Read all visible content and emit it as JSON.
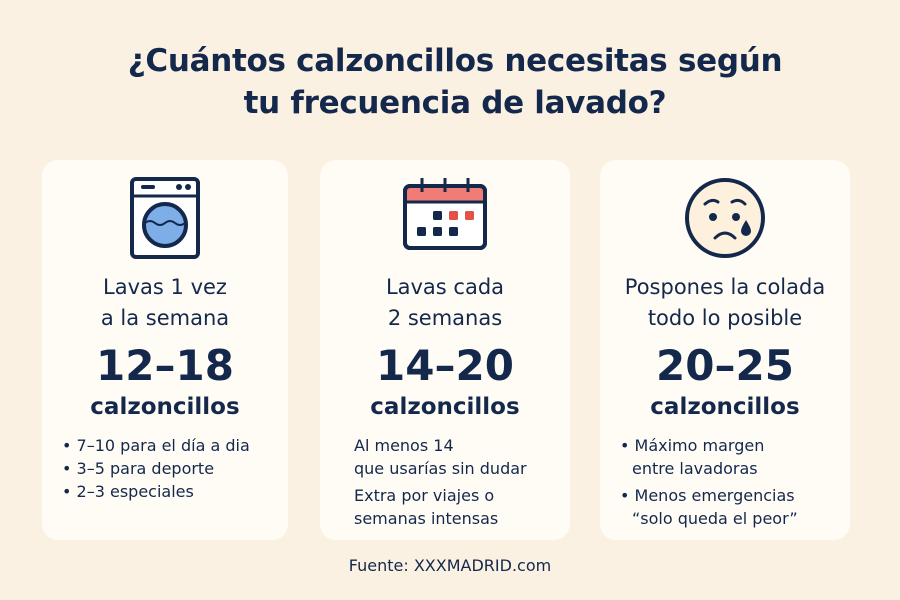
{
  "title": {
    "line1": "¿Cuántos calzoncillos necesitas según",
    "line2": "tu frecuencia de lavado?"
  },
  "colors": {
    "text": "#14284b",
    "background": "#faf1e3",
    "card": "#fffcf6",
    "accent_blue": "#7eaee8",
    "accent_red": "#e0524a",
    "calendar_header": "#f07c78"
  },
  "cards": [
    {
      "icon": "washing-machine-icon",
      "heading": [
        "Lavas 1 vez",
        "a la semana"
      ],
      "range": "12–18",
      "unit": "calzoncillos",
      "notes": [
        "7–10 para el día a dia",
        "3–5 para deporte",
        "2–3 especiales"
      ]
    },
    {
      "icon": "calendar-icon",
      "heading": [
        "Lavas cada",
        "2 semanas"
      ],
      "range": "14–20",
      "unit": "calzoncillos",
      "notes": [
        [
          "Al menos 14",
          "que usarías sin dudar"
        ],
        [
          "Extra por viajes o",
          "semanas intensas"
        ]
      ]
    },
    {
      "icon": "sad-face-icon",
      "heading": [
        "Pospones la colada",
        "todo lo posible"
      ],
      "range": "20–25",
      "unit": "calzoncillos",
      "notes": [
        [
          "Máximo margen",
          "entre lavadoras"
        ],
        [
          "Menos emergencias",
          "“solo queda el peor”"
        ]
      ]
    }
  ],
  "source": "Fuente: XXXMADRID.com"
}
